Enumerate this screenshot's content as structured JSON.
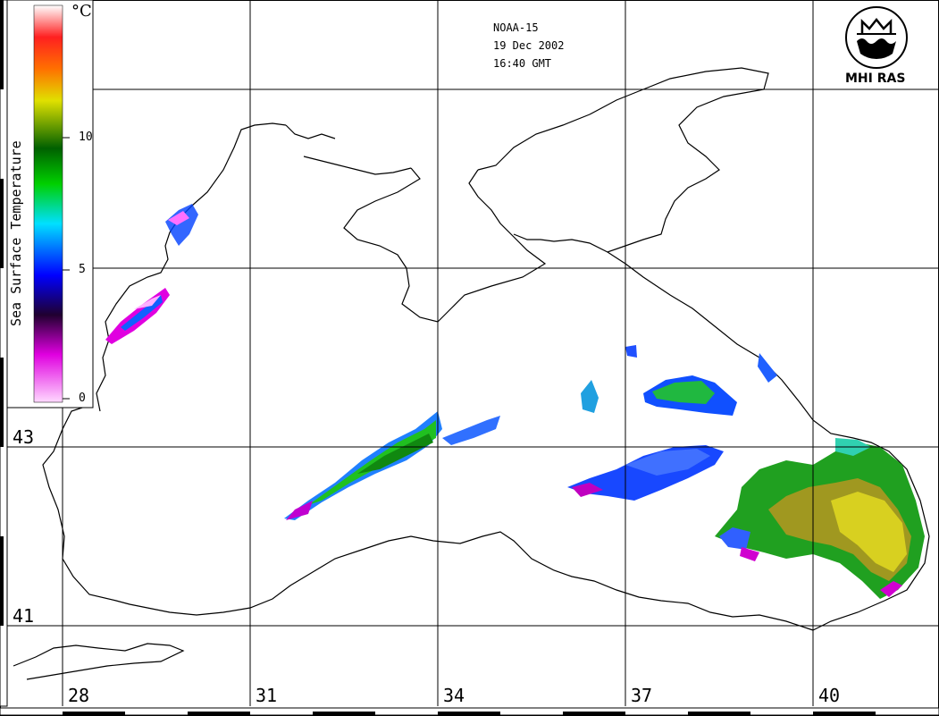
{
  "header": {
    "satellite": "NOAA-15",
    "date": "19 Dec 2002",
    "time": "16:40 GMT"
  },
  "logo": {
    "text": "MHI RAS",
    "icon": "mhi-ras-logo"
  },
  "colorbar": {
    "title": "Sea Surface Temperature",
    "unit": "°C",
    "ticks": [
      "0",
      "5",
      "10"
    ],
    "range": [
      0,
      15
    ],
    "colors": [
      "#ffd0ff",
      "#e000e0",
      "#300040",
      "#0000ff",
      "#00e0ff",
      "#00d000",
      "#007000",
      "#e0e000",
      "#ff7000",
      "#ff2020",
      "#ffffff"
    ]
  },
  "grid": {
    "longitudes": [
      "28",
      "31",
      "34",
      "37",
      "40"
    ],
    "latitudes": [
      "41",
      "43"
    ]
  }
}
